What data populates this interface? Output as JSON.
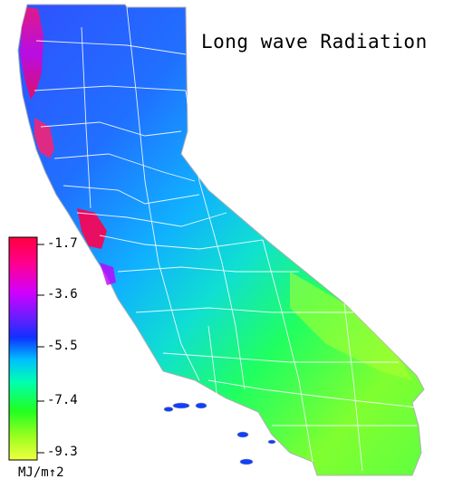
{
  "map": {
    "title": "Long wave Radiation",
    "units": "MJ/m↑2"
  },
  "legend": {
    "ticks": [
      "-1.7",
      "-3.6",
      "-5.5",
      "-7.4",
      "-9.3"
    ],
    "colors": [
      "#ff0040",
      "#ff00c0",
      "#a000ff",
      "#2020ff",
      "#0070ff",
      "#00d0ff",
      "#00ff90",
      "#20ff20",
      "#c0ff20",
      "#f0ff40"
    ]
  }
}
